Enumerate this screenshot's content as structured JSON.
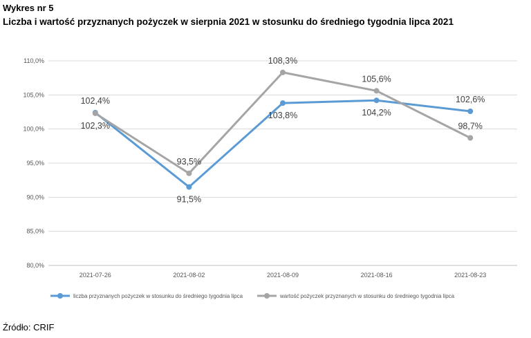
{
  "figure_label": "Wykres nr 5",
  "title": "Liczba i wartość przyznanych pożyczek w sierpnia 2021 w stosunku do średniego tygodnia lipca 2021",
  "source": "Źródło: CRIF",
  "chart_data": {
    "type": "line",
    "categories": [
      "2021-07-26",
      "2021-08-02",
      "2021-08-09",
      "2021-08-16",
      "2021-08-23"
    ],
    "ylim": [
      80.0,
      110.0
    ],
    "y_ticks": [
      "80,0%",
      "85,0%",
      "90,0%",
      "95,0%",
      "100,0%",
      "105,0%",
      "110,0%"
    ],
    "grid": true,
    "legend_position": "bottom",
    "series": [
      {
        "name": "liczba przyznanych pożyczek w stosunku do średniego tygodnia lipca",
        "color": "#5b9bd5",
        "values": [
          102.4,
          91.5,
          103.8,
          104.2,
          102.6
        ],
        "labels": [
          "102,4%",
          "91,5%",
          "103,8%",
          "104,2%",
          "102,6%"
        ]
      },
      {
        "name": "wartość pożyczek przyznanych w stosunku do średniego tygodnia lipca",
        "color": "#a5a5a5",
        "values": [
          102.3,
          93.5,
          108.3,
          105.6,
          98.7
        ],
        "labels": [
          "102,3%",
          "93,5%",
          "108,3%",
          "105,6%",
          "98,7%"
        ]
      }
    ]
  }
}
